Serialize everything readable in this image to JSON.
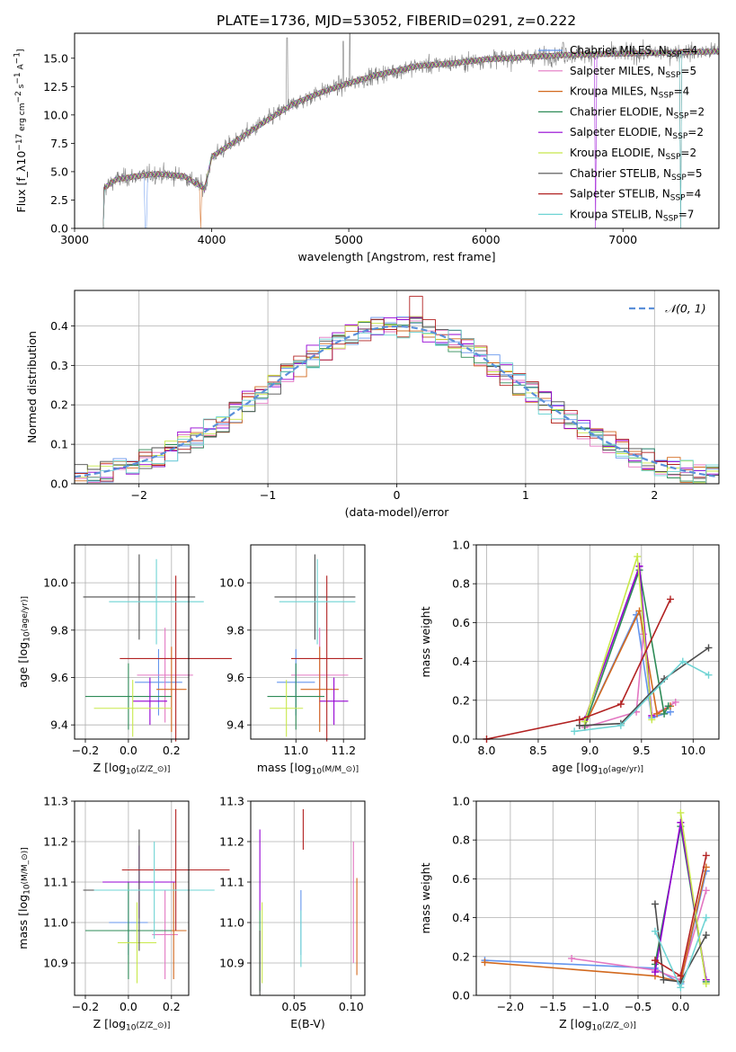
{
  "title": "PLATE=1736, MJD=53052, FIBERID=0291, z=0.222",
  "series": [
    {
      "name": "Chabrier MILES, N_SSP=4",
      "base": "Chabrier MILES, N",
      "sub": "SSP",
      "suffix": "=4",
      "color": "#6495ed"
    },
    {
      "name": "Salpeter MILES, N_SSP=5",
      "base": "Salpeter MILES, N",
      "sub": "SSP",
      "suffix": "=5",
      "color": "#e377c2"
    },
    {
      "name": "Kroupa MILES, N_SSP=4",
      "base": "Kroupa MILES, N",
      "sub": "SSP",
      "suffix": "=4",
      "color": "#d2691e"
    },
    {
      "name": "Chabrier ELODIE, N_SSP=2",
      "base": "Chabrier ELODIE, N",
      "sub": "SSP",
      "suffix": "=2",
      "color": "#2e8b57"
    },
    {
      "name": "Salpeter ELODIE, N_SSP=2",
      "base": "Salpeter ELODIE, N",
      "sub": "SSP",
      "suffix": "=2",
      "color": "#9400d3"
    },
    {
      "name": "Kroupa ELODIE, N_SSP=2",
      "base": "Kroupa ELODIE, N",
      "sub": "SSP",
      "suffix": "=2",
      "color": "#c8e84a"
    },
    {
      "name": "Chabrier STELIB, N_SSP=5",
      "base": "Chabrier STELIB, N",
      "sub": "SSP",
      "suffix": "=5",
      "color": "#4d4d4d"
    },
    {
      "name": "Salpeter STELIB, N_SSP=4",
      "base": "Salpeter STELIB, N",
      "sub": "SSP",
      "suffix": "=4",
      "color": "#b22222"
    },
    {
      "name": "Kroupa STELIB, N_SSP=7",
      "base": "Kroupa STELIB, N",
      "sub": "SSP",
      "suffix": "=7",
      "color": "#6fd4d4"
    }
  ],
  "chart_data": [
    {
      "id": "spectrum",
      "type": "line",
      "xlabel": "wavelength [Angstrom, rest frame]",
      "ylabel": "Flux [f_λ 10^-17 erg cm^-2 s^-1 A^-1]",
      "xlim": [
        3000,
        7700
      ],
      "ylim": [
        0,
        17.2
      ],
      "xticks": [
        3000,
        4000,
        5000,
        6000,
        7000
      ],
      "yticks": [
        0,
        2.5,
        5,
        7.5,
        10,
        12.5,
        15
      ],
      "ytick_labels": [
        "0.0",
        "2.5",
        "5.0",
        "7.5",
        "10.0",
        "12.5",
        "15.0"
      ],
      "grid": false,
      "legend": "right",
      "data_color": "#808080",
      "continuum": [
        [
          3200,
          3.4
        ],
        [
          3300,
          4.3
        ],
        [
          3450,
          4.6
        ],
        [
          3600,
          4.8
        ],
        [
          3800,
          4.6
        ],
        [
          3950,
          3.5
        ],
        [
          4000,
          6.3
        ],
        [
          4200,
          7.9
        ],
        [
          4400,
          9.5
        ],
        [
          4600,
          11.0
        ],
        [
          4800,
          12.0
        ],
        [
          5000,
          12.8
        ],
        [
          5200,
          13.5
        ],
        [
          5500,
          14.3
        ],
        [
          5800,
          14.6
        ],
        [
          6000,
          14.9
        ],
        [
          6300,
          15.1
        ],
        [
          6600,
          15.3
        ],
        [
          7000,
          15.4
        ],
        [
          7400,
          15.5
        ],
        [
          7700,
          15.6
        ]
      ],
      "drops": [
        3520,
        3520,
        3920,
        3920,
        6800,
        6800,
        7420,
        7420,
        7420
      ],
      "spikes": [
        [
          4550,
          16.8
        ],
        [
          4960,
          16.5
        ],
        [
          5007,
          17.2
        ],
        [
          6563,
          16.4
        ],
        [
          6583,
          15.9
        ]
      ]
    },
    {
      "id": "residuals",
      "type": "histogram",
      "xlabel": "(data-model)/error",
      "ylabel": "Normed distribution",
      "xlim": [
        -2.5,
        2.5
      ],
      "ylim": [
        0,
        0.49
      ],
      "xticks": [
        -2,
        -1,
        0,
        1,
        2
      ],
      "xtick_labels": [
        "−2",
        "−1",
        "0",
        "1",
        "2"
      ],
      "yticks": [
        0,
        0.1,
        0.2,
        0.3,
        0.4
      ],
      "ytick_labels": [
        "0.0",
        "0.1",
        "0.2",
        "0.3",
        "0.4"
      ],
      "grid": true,
      "bin_width": 0.1,
      "gaussian_label": "𝒩(0, 1)",
      "gaussian_color": "#5b8fd9",
      "legend": "top-right"
    },
    {
      "id": "age-vs-Z",
      "type": "scatter",
      "xlabel": "Z [log10(Z/Z⊙)]",
      "ylabel": "age [log10(age/yr)]",
      "xlim": [
        -0.25,
        0.28
      ],
      "ylim": [
        9.34,
        10.16
      ],
      "xticks": [
        -0.2,
        0,
        0.2
      ],
      "xtick_labels": [
        "−0.2",
        "0.0",
        "0.2"
      ],
      "yticks": [
        9.4,
        9.6,
        9.8,
        10.0
      ],
      "ytick_labels": [
        "9.4",
        "9.6",
        "9.8",
        "10.0"
      ],
      "grid": true,
      "points": [
        {
          "x": 0.14,
          "xerr": 0.11,
          "y": 9.58,
          "yerr": 0.14
        },
        {
          "x": 0.17,
          "xerr": 0.13,
          "y": 9.61,
          "yerr": 0.2
        },
        {
          "x": 0.2,
          "xerr": 0.07,
          "y": 9.55,
          "yerr": 0.18
        },
        {
          "x": 0.0,
          "xerr": 0.2,
          "y": 9.52,
          "yerr": 0.14
        },
        {
          "x": 0.1,
          "xerr": 0.08,
          "y": 9.5,
          "yerr": 0.1
        },
        {
          "x": 0.02,
          "xerr": 0.18,
          "y": 9.47,
          "yerr": 0.12
        },
        {
          "x": 0.05,
          "xerr": 0.26,
          "y": 9.94,
          "yerr": 0.18
        },
        {
          "x": 0.22,
          "xerr": 0.26,
          "y": 9.68,
          "yerr": 0.35
        },
        {
          "x": 0.13,
          "xerr": 0.22,
          "y": 9.92,
          "yerr": 0.18
        }
      ]
    },
    {
      "id": "age-vs-mass",
      "type": "scatter",
      "xlabel": "mass [log10(M/M⊙)]",
      "ylabel": "",
      "xlim": [
        10.81,
        11.29
      ],
      "ylim": [
        9.34,
        10.16
      ],
      "xticks": [
        11.0,
        11.2
      ],
      "xtick_labels": [
        "11.0",
        "11.2"
      ],
      "yticks": [
        9.4,
        9.6,
        9.8,
        10.0
      ],
      "ytick_labels": [
        "9.4",
        "9.6",
        "9.8",
        "10.0"
      ],
      "grid": true,
      "points": [
        {
          "x": 11.0,
          "xerr": 0.08,
          "y": 9.58,
          "yerr": 0.14
        },
        {
          "x": 11.1,
          "xerr": 0.12,
          "y": 9.61,
          "yerr": 0.2
        },
        {
          "x": 11.1,
          "xerr": 0.08,
          "y": 9.55,
          "yerr": 0.18
        },
        {
          "x": 11.0,
          "xerr": 0.12,
          "y": 9.52,
          "yerr": 0.14
        },
        {
          "x": 11.16,
          "xerr": 0.06,
          "y": 9.5,
          "yerr": 0.1
        },
        {
          "x": 10.96,
          "xerr": 0.07,
          "y": 9.47,
          "yerr": 0.12
        },
        {
          "x": 11.08,
          "xerr": 0.17,
          "y": 9.94,
          "yerr": 0.18
        },
        {
          "x": 11.13,
          "xerr": 0.15,
          "y": 9.68,
          "yerr": 0.35
        },
        {
          "x": 11.09,
          "xerr": 0.16,
          "y": 9.92,
          "yerr": 0.18
        }
      ]
    },
    {
      "id": "weight-vs-age",
      "type": "line",
      "xlabel": "age [log10(age/yr)]",
      "ylabel": "mass weight",
      "xlim": [
        7.9,
        10.25
      ],
      "ylim": [
        0,
        1
      ],
      "xticks": [
        8.0,
        8.5,
        9.0,
        9.5,
        10.0
      ],
      "xtick_labels": [
        "8.0",
        "8.5",
        "9.0",
        "9.5",
        "10.0"
      ],
      "yticks": [
        0,
        0.2,
        0.4,
        0.6,
        0.8,
        1.0
      ],
      "ytick_labels": [
        "0.0",
        "0.2",
        "0.4",
        "0.6",
        "0.8",
        "1.0"
      ],
      "grid": true,
      "series": [
        [
          [
            8.95,
            0.07
          ],
          [
            9.45,
            0.64
          ],
          [
            9.6,
            0.11
          ],
          [
            9.78,
            0.14
          ]
        ],
        [
          [
            8.95,
            0.06
          ],
          [
            9.45,
            0.14
          ],
          [
            9.52,
            0.54
          ],
          [
            9.6,
            0.12
          ],
          [
            9.83,
            0.19
          ]
        ],
        [
          [
            8.95,
            0.07
          ],
          [
            9.48,
            0.66
          ],
          [
            9.65,
            0.13
          ],
          [
            9.78,
            0.17
          ]
        ],
        [
          [
            8.95,
            0.07
          ],
          [
            9.48,
            0.87
          ],
          [
            9.72,
            0.13
          ],
          [
            9.76,
            0.17
          ]
        ],
        [
          [
            8.95,
            0.1
          ],
          [
            9.48,
            0.89
          ],
          [
            9.6,
            0.12
          ]
        ],
        [
          [
            8.95,
            0.09
          ],
          [
            9.46,
            0.94
          ],
          [
            9.6,
            0.1
          ]
        ],
        [
          [
            8.9,
            0.07
          ],
          [
            9.3,
            0.08
          ],
          [
            9.72,
            0.31
          ],
          [
            10.15,
            0.47
          ]
        ],
        [
          [
            8.0,
            0.0
          ],
          [
            8.9,
            0.1
          ],
          [
            9.3,
            0.18
          ],
          [
            9.78,
            0.72
          ]
        ],
        [
          [
            8.85,
            0.04
          ],
          [
            9.3,
            0.07
          ],
          [
            9.9,
            0.4
          ],
          [
            10.15,
            0.33
          ]
        ]
      ]
    },
    {
      "id": "mass-vs-Z",
      "type": "scatter",
      "xlabel": "Z [log10(Z/Z⊙)]",
      "ylabel": "mass [log10(M/M⊙)]",
      "xlim": [
        -0.25,
        0.28
      ],
      "ylim": [
        10.82,
        11.3
      ],
      "xticks": [
        -0.2,
        0,
        0.2
      ],
      "xtick_labels": [
        "−0.2",
        "0.0",
        "0.2"
      ],
      "yticks": [
        10.9,
        11.0,
        11.1,
        11.2,
        11.3
      ],
      "ytick_labels": [
        "10.9",
        "11.0",
        "11.1",
        "11.2",
        "11.3"
      ],
      "grid": true,
      "points": [
        {
          "x": 0.0,
          "xerr": 0.09,
          "y": 11.0,
          "yerr": 0.08
        },
        {
          "x": 0.17,
          "xerr": 0.06,
          "y": 10.97,
          "yerr": 0.11
        },
        {
          "x": 0.21,
          "xerr": 0.06,
          "y": 10.98,
          "yerr": 0.12
        },
        {
          "x": 0.0,
          "xerr": 0.2,
          "y": 10.98,
          "yerr": 0.12
        },
        {
          "x": 0.05,
          "xerr": 0.17,
          "y": 11.1,
          "yerr": 0.09
        },
        {
          "x": 0.04,
          "xerr": 0.09,
          "y": 10.95,
          "yerr": 0.1
        },
        {
          "x": 0.05,
          "xerr": 0.26,
          "y": 11.08,
          "yerr": 0.15
        },
        {
          "x": 0.22,
          "xerr": 0.25,
          "y": 11.13,
          "yerr": 0.15
        },
        {
          "x": 0.12,
          "xerr": 0.28,
          "y": 11.08,
          "yerr": 0.12
        }
      ]
    },
    {
      "id": "mass-vs-ebv",
      "type": "scatter",
      "xlabel": "E(B-V)",
      "ylabel": "",
      "xlim": [
        0.012,
        0.112
      ],
      "ylim": [
        10.82,
        11.3
      ],
      "xticks": [
        0.05,
        0.1
      ],
      "xtick_labels": [
        "0.05",
        "0.10"
      ],
      "yticks": [
        10.9,
        11.0,
        11.1,
        11.2,
        11.3
      ],
      "ytick_labels": [
        "10.9",
        "11.0",
        "11.1",
        "11.2",
        "11.3"
      ],
      "grid": true,
      "points": [
        {
          "x": 0.056,
          "y": 11.0,
          "yerr": 0.08
        },
        {
          "x": 0.102,
          "y": 11.05,
          "yerr": 0.15
        },
        {
          "x": 0.105,
          "y": 10.99,
          "yerr": 0.12
        },
        {
          "x": 0.02,
          "y": 10.93,
          "yerr": 0.1
        },
        {
          "x": 0.02,
          "y": 11.13,
          "yerr": 0.1
        },
        {
          "x": 0.022,
          "y": 10.95,
          "yerr": 0.1
        },
        {
          "x": 0.02,
          "y": 10.9,
          "yerr": 0.08
        },
        {
          "x": 0.058,
          "y": 11.23,
          "yerr": 0.05
        },
        {
          "x": 0.056,
          "y": 10.96,
          "yerr": 0.07
        }
      ]
    },
    {
      "id": "weight-vs-Z",
      "type": "line",
      "xlabel": "Z [log10(Z/Z⊙)]",
      "ylabel": "mass weight",
      "xlim": [
        -2.4,
        0.45
      ],
      "ylim": [
        0,
        1
      ],
      "xticks": [
        -2.0,
        -1.5,
        -1.0,
        -0.5,
        0.0
      ],
      "xtick_labels": [
        "−2.0",
        "−1.5",
        "−1.0",
        "−0.5",
        "0.0"
      ],
      "yticks": [
        0,
        0.2,
        0.4,
        0.6,
        0.8,
        1.0
      ],
      "ytick_labels": [
        "0.0",
        "0.2",
        "0.4",
        "0.6",
        "0.8",
        "1.0"
      ],
      "grid": true,
      "series": [
        [
          [
            -2.3,
            0.18
          ],
          [
            -0.3,
            0.14
          ],
          [
            0.0,
            0.06
          ],
          [
            0.3,
            0.64
          ]
        ],
        [
          [
            -1.28,
            0.19
          ],
          [
            -0.3,
            0.13
          ],
          [
            0.0,
            0.08
          ],
          [
            0.3,
            0.54
          ]
        ],
        [
          [
            -2.3,
            0.17
          ],
          [
            -0.3,
            0.1
          ],
          [
            0.0,
            0.07
          ],
          [
            0.3,
            0.66
          ]
        ],
        [
          [
            -0.3,
            0.16
          ],
          [
            0.0,
            0.87
          ],
          [
            0.3,
            0.07
          ]
        ],
        [
          [
            -0.3,
            0.12
          ],
          [
            0.0,
            0.89
          ],
          [
            0.3,
            0.08
          ]
        ],
        [
          [
            0.0,
            0.94
          ],
          [
            0.3,
            0.06
          ]
        ],
        [
          [
            -0.3,
            0.47
          ],
          [
            -0.2,
            0.08
          ],
          [
            0.0,
            0.07
          ],
          [
            0.3,
            0.31
          ]
        ],
        [
          [
            -0.3,
            0.18
          ],
          [
            0.0,
            0.1
          ],
          [
            0.3,
            0.72
          ]
        ],
        [
          [
            -0.3,
            0.33
          ],
          [
            0.0,
            0.04
          ],
          [
            0.3,
            0.4
          ]
        ]
      ]
    }
  ]
}
